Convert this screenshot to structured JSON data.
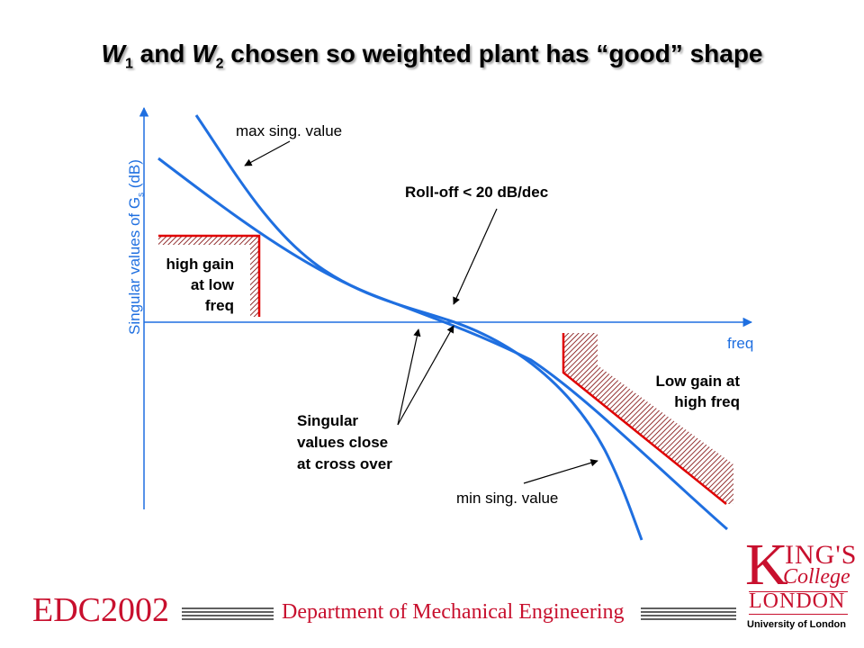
{
  "title": {
    "w1": "W",
    "w1_sub": "1",
    "mid": " and ",
    "w2": "W",
    "w2_sub": "2",
    "rest": " chosen so weighted plant has “good” shape"
  },
  "axes": {
    "y_label_pre": "Singular values of G",
    "y_label_sub": "s",
    "y_label_post": " (dB)",
    "x_label": "freq"
  },
  "annotations": {
    "max_sv": "max sing. value",
    "min_sv": "min sing. value",
    "rolloff": "Roll-off < 20 dB/dec",
    "high_gain": [
      "high gain",
      "at  low",
      "freq"
    ],
    "low_gain": [
      "Low gain at",
      "high freq"
    ],
    "crossover": [
      "Singular",
      "values close",
      "at cross over"
    ]
  },
  "footer": {
    "course_code": "EDC2002",
    "department": "Department of Mechanical Engineering"
  },
  "logo": {
    "k": "K",
    "ings": "ING'S",
    "college": "College",
    "london": "LONDON",
    "univ": "University of London"
  },
  "colors": {
    "curve": "#1f6fe0",
    "constraint": "#e00000",
    "brand": "#c8102e"
  }
}
